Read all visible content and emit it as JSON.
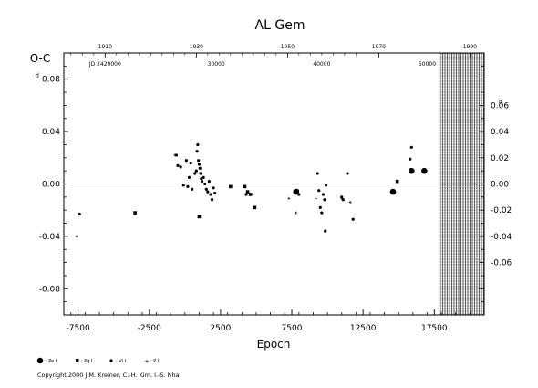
{
  "chart_data": {
    "type": "scatter",
    "title": "AL Gem",
    "ylabel": "O-C",
    "xlabel": "Epoch",
    "xlim": [
      -8500,
      21000
    ],
    "ylim": [
      -0.1,
      0.1
    ],
    "left_axis_tick_labels": [
      "0.08",
      "0.04",
      "0.00",
      "-0.04",
      "-0.08"
    ],
    "left_axis_tick_values": [
      0.08,
      0.04,
      0.0,
      -0.04,
      -0.08
    ],
    "right_axis_tick_labels": [
      "0.06",
      "0.04",
      "0.02",
      "0.00",
      "-0.02",
      "-0.04",
      "-0.06"
    ],
    "right_axis_tick_values": [
      0.06,
      0.04,
      0.02,
      0.0,
      -0.02,
      -0.04,
      -0.06
    ],
    "right_axis_scale": 1.0,
    "left_axis_unit_mark": "d",
    "right_axis_unit_mark": "d",
    "x_tick_labels": [
      "-7500",
      "-2500",
      "2500",
      "7500",
      "12500",
      "17500"
    ],
    "x_tick_values": [
      -7500,
      -2500,
      2500,
      7500,
      12500,
      17500
    ],
    "top_year_labels": [
      "1910",
      "1930",
      "1950",
      "1970",
      "1990"
    ],
    "top_year_epochs": [
      -5600,
      800,
      7200,
      13600,
      20000
    ],
    "top_jd_labels": [
      "JD 2420000",
      "30000",
      "40000",
      "50000"
    ],
    "top_jd_epochs": [
      -5600,
      2200,
      9600,
      17000
    ],
    "hatched_region_start_epoch": 17800,
    "zero_line": true,
    "legend": [
      {
        "symbol": "large-circle",
        "label": ": Pe I"
      },
      {
        "symbol": "square",
        "label": ": Pg I"
      },
      {
        "symbol": "small-circle",
        "label": ": Vi I"
      },
      {
        "symbol": "plus",
        "label": ": P I"
      }
    ],
    "series": [
      {
        "name": "Pe I",
        "marker": "large-circle",
        "points": [
          [
            7800,
            -0.006
          ],
          [
            14600,
            -0.006
          ],
          [
            15900,
            0.01
          ],
          [
            16800,
            0.01
          ]
        ]
      },
      {
        "name": "Pg I",
        "marker": "square",
        "points": [
          [
            -3500,
            -0.022
          ],
          [
            1000,
            -0.025
          ],
          [
            3200,
            -0.002
          ],
          [
            4200,
            -0.002
          ],
          [
            4400,
            -0.006
          ],
          [
            4600,
            -0.008
          ],
          [
            4900,
            -0.018
          ],
          [
            14900,
            0.002
          ]
        ]
      },
      {
        "name": "Vi I",
        "marker": "small-circle",
        "points": [
          [
            -7400,
            -0.023
          ],
          [
            -600,
            0.022
          ],
          [
            -500,
            0.014
          ],
          [
            -300,
            0.013
          ],
          [
            -100,
            -0.001
          ],
          [
            100,
            0.018
          ],
          [
            200,
            -0.002
          ],
          [
            300,
            0.005
          ],
          [
            400,
            0.016
          ],
          [
            500,
            -0.004
          ],
          [
            700,
            0.008
          ],
          [
            800,
            0.01
          ],
          [
            850,
            0.025
          ],
          [
            900,
            0.03
          ],
          [
            950,
            0.018
          ],
          [
            1000,
            0.015
          ],
          [
            1050,
            0.012
          ],
          [
            1100,
            0.008
          ],
          [
            1150,
            0.004
          ],
          [
            1200,
            0.002
          ],
          [
            1300,
            0.005
          ],
          [
            1400,
            0.0
          ],
          [
            1500,
            -0.004
          ],
          [
            1600,
            -0.006
          ],
          [
            1700,
            0.002
          ],
          [
            1800,
            -0.008
          ],
          [
            1900,
            -0.012
          ],
          [
            2000,
            -0.003
          ],
          [
            2100,
            -0.007
          ],
          [
            4300,
            -0.008
          ],
          [
            7900,
            -0.005
          ],
          [
            8000,
            -0.008
          ],
          [
            9300,
            0.008
          ],
          [
            9400,
            -0.005
          ],
          [
            9500,
            -0.018
          ],
          [
            9600,
            -0.022
          ],
          [
            9700,
            -0.008
          ],
          [
            9800,
            -0.012
          ],
          [
            9850,
            -0.036
          ],
          [
            9900,
            -0.001
          ],
          [
            11000,
            -0.01
          ],
          [
            11100,
            -0.012
          ],
          [
            11400,
            0.008
          ],
          [
            11800,
            -0.027
          ],
          [
            15800,
            0.019
          ],
          [
            15900,
            0.028
          ]
        ]
      },
      {
        "name": "P I",
        "marker": "plus",
        "points": [
          [
            -7600,
            -0.04
          ],
          [
            -700,
            0.022
          ],
          [
            7300,
            -0.011
          ],
          [
            7800,
            -0.022
          ],
          [
            9200,
            -0.011
          ],
          [
            11000,
            -0.011
          ],
          [
            11600,
            -0.014
          ]
        ]
      }
    ]
  },
  "copyright": "Copyright 2000 J.M. Kreiner, C.-H. Kim, I.-S. Nha"
}
